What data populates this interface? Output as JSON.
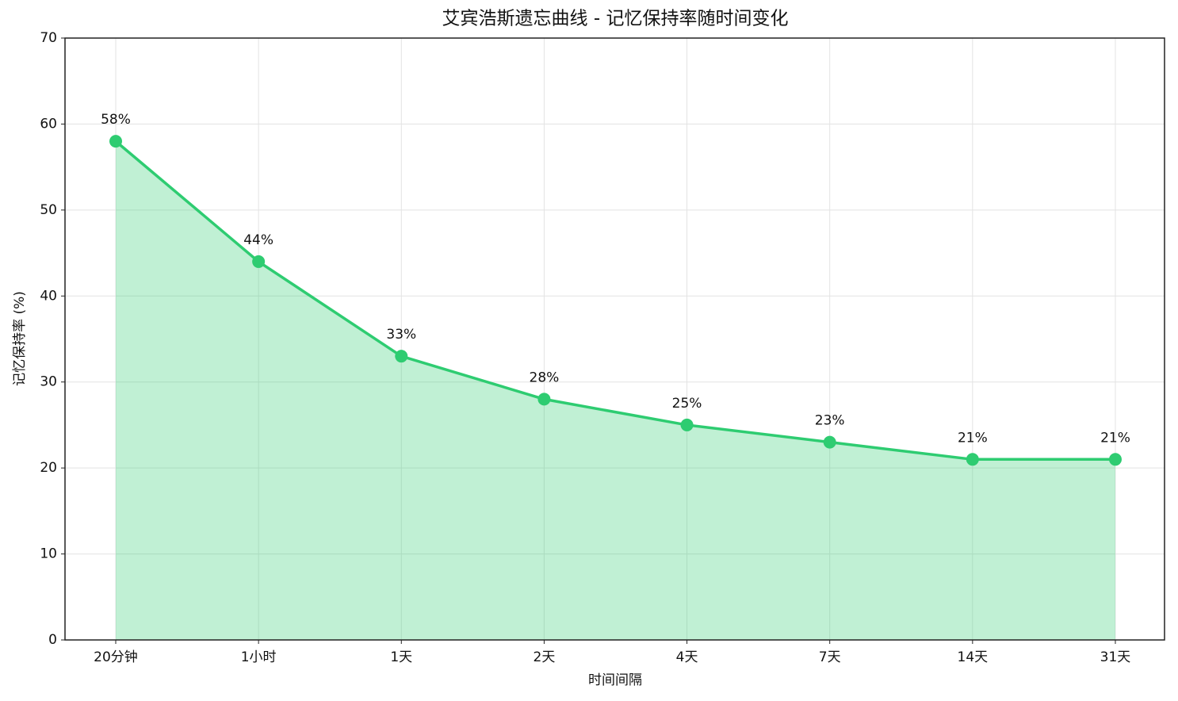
{
  "chart_data": {
    "type": "line",
    "title": "艾宾浩斯遗忘曲线 - 记忆保持率随时间变化",
    "xlabel": "时间间隔",
    "ylabel": "记忆保持率 (%)",
    "categories": [
      "20分钟",
      "1小时",
      "1天",
      "2天",
      "4天",
      "7天",
      "14天",
      "31天"
    ],
    "series": [
      {
        "name": "记忆保持率",
        "color": "#2ecc71",
        "values": [
          58,
          44,
          33,
          28,
          25,
          23,
          21,
          21
        ],
        "value_labels": [
          "58%",
          "44%",
          "33%",
          "28%",
          "25%",
          "23%",
          "21%",
          "21%"
        ]
      }
    ],
    "fill": true,
    "ylim": [
      0,
      70
    ],
    "yticks": [
      0,
      10,
      20,
      30,
      40,
      50,
      60,
      70
    ],
    "grid": true
  }
}
